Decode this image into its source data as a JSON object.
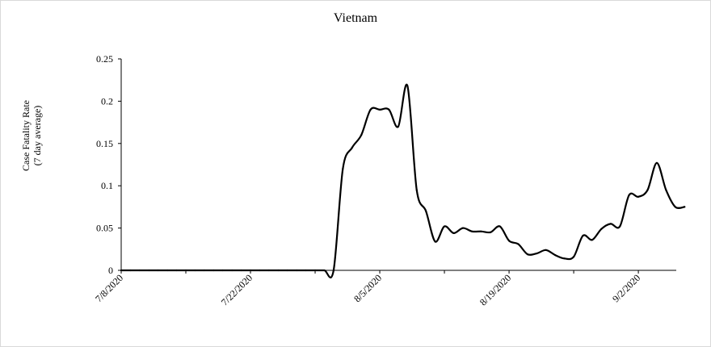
{
  "chart_data": {
    "type": "line",
    "title": "Vietnam",
    "ylabel_lines": [
      "Case Fatality Rate",
      "(7 day average)"
    ],
    "xlabel": "",
    "x_start": "7/8/2020",
    "x_tick_labels": [
      "7/8/2020",
      "7/22/2020",
      "8/5/2020",
      "8/19/2020",
      "9/2/2020"
    ],
    "y_tick_labels": [
      "0",
      "0.05",
      "0.1",
      "0.15",
      "0.2",
      "0.25"
    ],
    "ylim": [
      0,
      0.25
    ],
    "grid": false,
    "legend": "none",
    "series": [
      {
        "color": "#000000",
        "x": [
          "7/8/2020",
          "7/9/2020",
          "7/10/2020",
          "7/11/2020",
          "7/12/2020",
          "7/13/2020",
          "7/14/2020",
          "7/15/2020",
          "7/16/2020",
          "7/17/2020",
          "7/18/2020",
          "7/19/2020",
          "7/20/2020",
          "7/21/2020",
          "7/22/2020",
          "7/23/2020",
          "7/24/2020",
          "7/25/2020",
          "7/26/2020",
          "7/27/2020",
          "7/28/2020",
          "7/29/2020",
          "7/30/2020",
          "7/31/2020",
          "8/1/2020",
          "8/2/2020",
          "8/3/2020",
          "8/4/2020",
          "8/5/2020",
          "8/6/2020",
          "8/7/2020",
          "8/8/2020",
          "8/9/2020",
          "8/10/2020",
          "8/11/2020",
          "8/12/2020",
          "8/13/2020",
          "8/14/2020",
          "8/15/2020",
          "8/16/2020",
          "8/17/2020",
          "8/18/2020",
          "8/19/2020",
          "8/20/2020",
          "8/21/2020",
          "8/22/2020",
          "8/23/2020",
          "8/24/2020",
          "8/25/2020",
          "8/26/2020",
          "8/27/2020",
          "8/28/2020",
          "8/29/2020",
          "8/30/2020",
          "8/31/2020",
          "9/1/2020",
          "9/2/2020",
          "9/3/2020",
          "9/4/2020",
          "9/5/2020",
          "9/6/2020",
          "9/7/2020"
        ],
        "values": [
          0,
          0,
          0,
          0,
          0,
          0,
          0,
          0,
          0,
          0,
          0,
          0,
          0,
          0,
          0,
          0,
          0,
          0,
          0,
          0,
          0,
          0,
          0,
          0,
          0.12,
          0.145,
          0.16,
          0.19,
          0.19,
          0.19,
          0.17,
          0.218,
          0.095,
          0.07,
          0.034,
          0.052,
          0.044,
          0.05,
          0.046,
          0.046,
          0.045,
          0.052,
          0.035,
          0.031,
          0.019,
          0.02,
          0.024,
          0.018,
          0.014,
          0.016,
          0.041,
          0.036,
          0.049,
          0.055,
          0.052,
          0.089,
          0.087,
          0.095,
          0.127,
          0.095,
          0.075,
          0.075
        ]
      }
    ]
  }
}
